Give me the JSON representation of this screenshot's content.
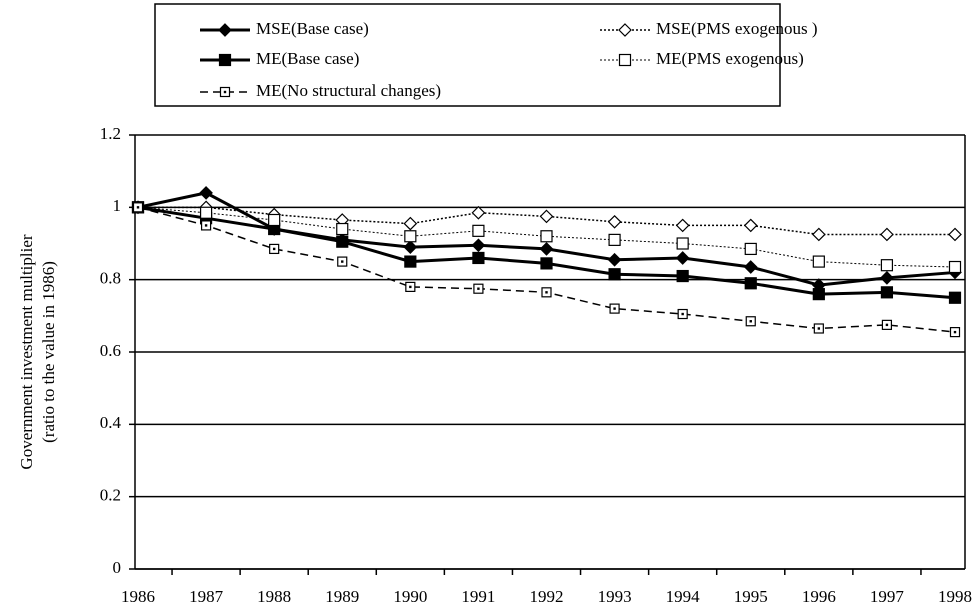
{
  "chart_data": {
    "type": "line",
    "ylabel": [
      "Government investment multiplier",
      "(ratio to the value in 1986)"
    ],
    "categories": [
      "1986",
      "1987",
      "1988",
      "1989",
      "1990",
      "1991",
      "1992",
      "1993",
      "1994",
      "1995",
      "1996",
      "1997",
      "1998"
    ],
    "ylim": [
      0,
      1.2
    ],
    "yticks": [
      0,
      0.2,
      0.4,
      0.6,
      0.8,
      1,
      1.2
    ],
    "grid": true,
    "series": [
      {
        "name": "MSE(Base case)",
        "color": "#000000",
        "marker": "diamond",
        "marker_fill": "#000000",
        "dash": "solid",
        "width": 3,
        "values": [
          1.0,
          1.04,
          0.94,
          0.91,
          0.89,
          0.895,
          0.885,
          0.855,
          0.86,
          0.835,
          0.785,
          0.805,
          0.82
        ]
      },
      {
        "name": "MSE(PMS exogenous )",
        "color": "#000000",
        "marker": "diamond",
        "marker_fill": "#ffffff",
        "dash": "dotted",
        "width": 1.5,
        "values": [
          1.0,
          1.0,
          0.98,
          0.965,
          0.955,
          0.985,
          0.975,
          0.96,
          0.95,
          0.95,
          0.925,
          0.925,
          0.925
        ]
      },
      {
        "name": "ME(Base case)",
        "color": "#000000",
        "marker": "square",
        "marker_fill": "#000000",
        "dash": "solid",
        "width": 3,
        "values": [
          1.0,
          0.97,
          0.94,
          0.905,
          0.85,
          0.86,
          0.845,
          0.815,
          0.81,
          0.79,
          0.76,
          0.765,
          0.75
        ]
      },
      {
        "name": "ME(PMS exogenous)",
        "color": "#000000",
        "marker": "square",
        "marker_fill": "#ffffff",
        "dash": "dotted",
        "width": 1,
        "values": [
          1.0,
          0.985,
          0.965,
          0.94,
          0.92,
          0.935,
          0.92,
          0.91,
          0.9,
          0.885,
          0.85,
          0.84,
          0.835
        ]
      },
      {
        "name": "ME(No structural changes)",
        "color": "#000000",
        "marker": "dotsquare",
        "marker_fill": "#ffffff",
        "dash": "dashed",
        "width": 1.5,
        "values": [
          1.0,
          0.95,
          0.885,
          0.85,
          0.78,
          0.775,
          0.765,
          0.72,
          0.705,
          0.685,
          0.665,
          0.675,
          0.655
        ]
      }
    ]
  }
}
